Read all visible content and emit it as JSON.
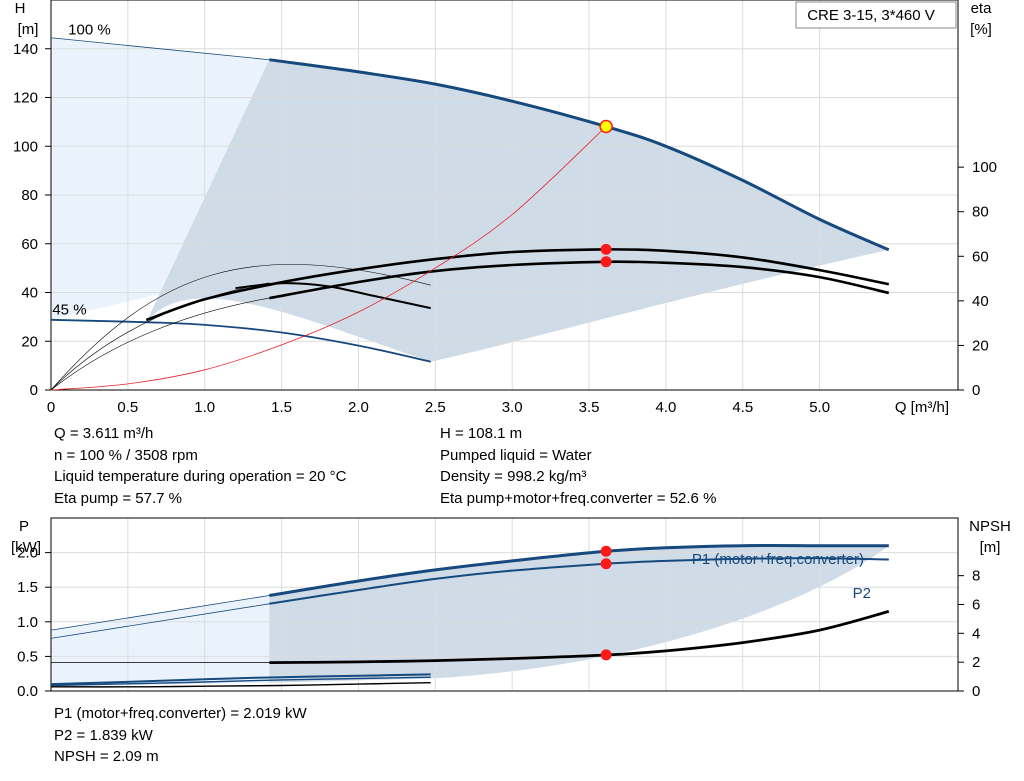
{
  "title_box": "CRE 3-15, 3*460 V",
  "chart_data": [
    {
      "id": "head",
      "type": "line",
      "xlabel": "Q [m³/h]",
      "ylabel": [
        "H",
        "[m]"
      ],
      "ylabel_right": [
        "eta",
        "[%]"
      ],
      "xlim": [
        0,
        5.9
      ],
      "ylim": [
        0,
        160
      ],
      "xticks": [
        0,
        0.5,
        1.0,
        1.5,
        2.0,
        2.5,
        3.0,
        3.5,
        4.0,
        4.5,
        5.0
      ],
      "xtick_labels": [
        "0",
        "0.5",
        "1.0",
        "1.5",
        "2.0",
        "2.5",
        "3.0",
        "3.5",
        "4.0",
        "4.5",
        "5.0"
      ],
      "yticks": [
        0,
        20,
        40,
        60,
        80,
        100,
        120,
        140
      ],
      "ytick_labels": [
        "0",
        "20",
        "40",
        "60",
        "80",
        "100",
        "120",
        "140"
      ],
      "yticks_right": [
        0,
        20,
        40,
        60,
        80,
        100
      ],
      "ytick_labels_right": [
        "0",
        "20",
        "40",
        "60",
        "80",
        "100"
      ],
      "speed_labels": [
        {
          "text": "100 %",
          "x": 0.25,
          "y": 148
        },
        {
          "text": "45 %",
          "x": 0.12,
          "y": 33
        }
      ],
      "series": [
        {
          "role": "head-100",
          "color": "#16497e",
          "x": [
            0,
            1.42,
            2.0,
            2.5,
            3.0,
            3.611,
            4.0,
            4.5,
            5.0,
            5.45
          ],
          "y": [
            144.5,
            135.5,
            130.5,
            125.5,
            118.5,
            108.1,
            100,
            86,
            70,
            57.5
          ]
        },
        {
          "role": "head-45",
          "color": "#16497e",
          "x": [
            0,
            0.62,
            1.0,
            1.5,
            2.0,
            2.47
          ],
          "y": [
            28.8,
            27.8,
            26.7,
            23.6,
            18.2,
            11.6
          ]
        },
        {
          "role": "eta-pump",
          "color": "#000000",
          "x": [
            0.62,
            1.0,
            1.5,
            2.0,
            2.5,
            3.0,
            3.611,
            4.0,
            4.5,
            5.0,
            5.45
          ],
          "y": [
            28.7,
            37.2,
            44.2,
            49.5,
            53.7,
            56.6,
            57.7,
            57.1,
            54.4,
            49.2,
            43.4
          ]
        },
        {
          "role": "eta-total",
          "color": "#000000",
          "x": [
            1.42,
            2.0,
            2.5,
            3.0,
            3.611,
            4.0,
            4.5,
            5.0,
            5.45
          ],
          "y": [
            37.7,
            44.3,
            48.8,
            51.3,
            52.6,
            52.2,
            50.4,
            46.3,
            39.8
          ]
        },
        {
          "role": "eta-45",
          "color": "#000000",
          "x": [
            1.2,
            1.5,
            1.8,
            2.1,
            2.47
          ],
          "y": [
            41.8,
            43.8,
            42.6,
            38.6,
            33.6
          ]
        },
        {
          "role": "system-curve",
          "color": "#e8232b",
          "x": [
            0,
            0.5,
            1.0,
            1.5,
            2.0,
            2.5,
            3.0,
            3.611
          ],
          "y": [
            0,
            2.5,
            8.3,
            18.5,
            32.0,
            50.0,
            72.0,
            108.1
          ]
        }
      ],
      "operating_point": {
        "Q": 3.611,
        "H": 108.1,
        "eta_pump": 57.7,
        "eta_total": 52.6
      }
    },
    {
      "id": "power",
      "type": "line",
      "ylabel": [
        "P",
        "[kW]"
      ],
      "ylabel_right": [
        "NPSH",
        "[m]"
      ],
      "xlim": [
        0,
        5.9
      ],
      "ylim": [
        0,
        2.5
      ],
      "yticks": [
        0,
        0.5,
        1.0,
        1.5,
        2.0
      ],
      "ytick_labels": [
        "0.0",
        "0.5",
        "1.0",
        "1.5",
        "2.0"
      ],
      "yticks_right": [
        0,
        2,
        4,
        6,
        8
      ],
      "ytick_labels_right": [
        "0",
        "2",
        "4",
        "6",
        "8"
      ],
      "series": [
        {
          "name": "P1 (motor+freq.converter)",
          "color": "#16497e",
          "x": [
            0,
            1.42,
            2.0,
            2.5,
            3.0,
            3.611,
            4.0,
            4.5,
            5.0,
            5.45
          ],
          "y": [
            0.88,
            1.38,
            1.59,
            1.75,
            1.88,
            2.019,
            2.07,
            2.1,
            2.1,
            2.1
          ]
        },
        {
          "name": "P2",
          "color": "#16497e",
          "x": [
            0,
            1.42,
            2.0,
            2.5,
            3.0,
            3.611,
            4.0,
            4.5,
            5.0,
            5.45
          ],
          "y": [
            0.76,
            1.26,
            1.46,
            1.62,
            1.74,
            1.839,
            1.88,
            1.91,
            1.92,
            1.9
          ]
        },
        {
          "role": "npsh",
          "color": "#000000",
          "x": [
            0,
            1.42,
            2.0,
            2.5,
            3.0,
            3.611,
            4.0,
            4.5,
            5.0,
            5.45
          ],
          "y": [
            0.41,
            0.41,
            0.42,
            0.44,
            0.47,
            0.52,
            0.58,
            0.7,
            0.88,
            1.15
          ]
        },
        {
          "role": "p1-45",
          "color": "#16497e",
          "x": [
            0,
            0.62,
            1.0,
            1.5,
            2.0,
            2.47
          ],
          "y": [
            0.1,
            0.14,
            0.17,
            0.2,
            0.22,
            0.24
          ]
        },
        {
          "role": "p2-45",
          "color": "#16497e",
          "x": [
            0,
            0.62,
            1.0,
            1.5,
            2.0,
            2.47
          ],
          "y": [
            0.08,
            0.11,
            0.13,
            0.16,
            0.18,
            0.2
          ]
        },
        {
          "role": "npsh-45",
          "color": "#000000",
          "x": [
            0,
            0.62,
            1.0,
            1.5,
            2.0,
            2.47
          ],
          "y": [
            0.06,
            0.06,
            0.07,
            0.08,
            0.1,
            0.12
          ]
        }
      ],
      "operating_point": {
        "Q": 3.611,
        "P1": 2.019,
        "P2": 1.839,
        "NPSH": 2.09
      }
    }
  ],
  "info_upper_left": [
    "Q = 3.611 m³/h",
    "n = 100 % / 3508 rpm",
    "Liquid temperature during operation = 20 °C",
    "Eta pump = 57.7 %"
  ],
  "info_upper_right": [
    "H = 108.1 m",
    "Pumped liquid = Water",
    "Density = 998.2 kg/m³",
    "Eta pump+motor+freq.converter = 52.6 %"
  ],
  "info_lower": [
    "P1 (motor+freq.converter) = 2.019 kW",
    "P2 = 1.839 kW",
    "NPSH = 2.09 m"
  ],
  "colors": {
    "curve_blue": "#16497e",
    "area_light": "#eaf3fc",
    "area_dark": "#cfdbe7",
    "grid": "#dcdcdc",
    "system": "#e8232b",
    "marker": "#ff1a1a",
    "op_marker_fill": "#ffff00"
  }
}
